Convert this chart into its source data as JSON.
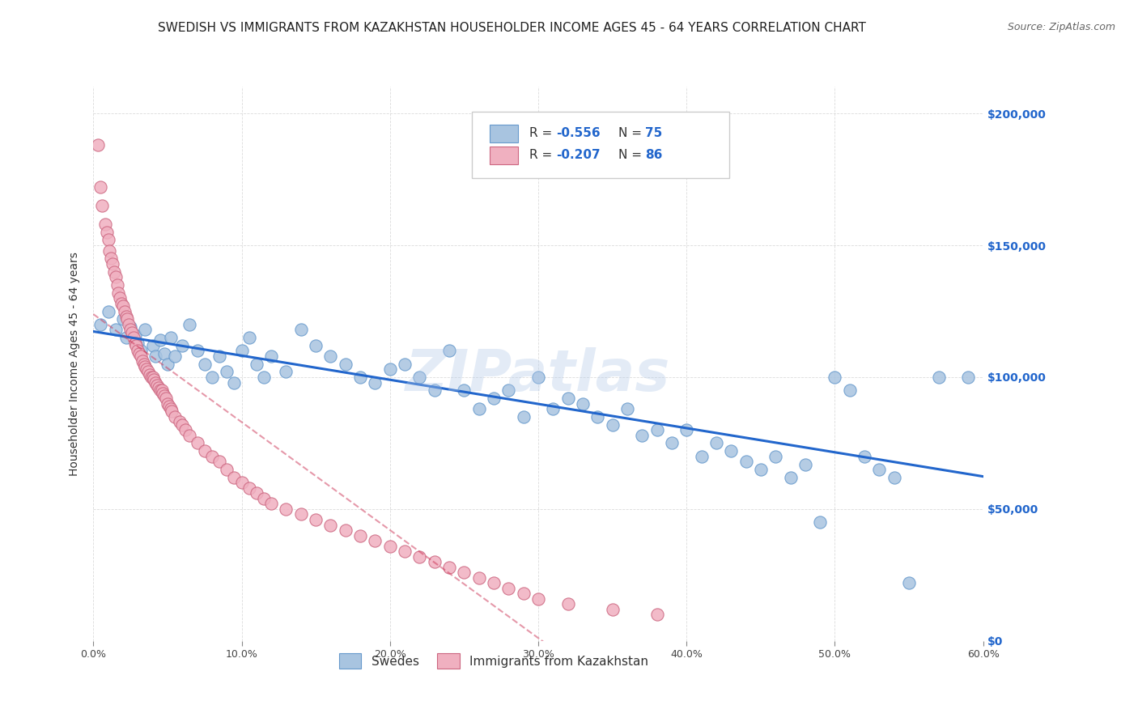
{
  "title": "SWEDISH VS IMMIGRANTS FROM KAZAKHSTAN HOUSEHOLDER INCOME AGES 45 - 64 YEARS CORRELATION CHART",
  "source": "Source: ZipAtlas.com",
  "ylabel": "Householder Income Ages 45 - 64 years",
  "xlabel_ticks": [
    "0.0%",
    "10.0%",
    "20.0%",
    "30.0%",
    "40.0%",
    "50.0%",
    "60.0%"
  ],
  "xlabel_vals": [
    0,
    10,
    20,
    30,
    40,
    50,
    60
  ],
  "ytick_labels": [
    "$0",
    "$50,000",
    "$100,000",
    "$150,000",
    "$200,000"
  ],
  "ytick_vals": [
    0,
    50000,
    100000,
    150000,
    200000
  ],
  "legend1_r": "-0.556",
  "legend1_n": "75",
  "legend2_r": "-0.207",
  "legend2_n": "86",
  "blue_color": "#a8c4e0",
  "blue_edge": "#6699cc",
  "pink_color": "#f0b0c0",
  "pink_edge": "#cc6680",
  "trend_blue": "#2266cc",
  "trend_pink": "#cc3355",
  "blue_scatter_x": [
    0.5,
    1.0,
    1.5,
    2.0,
    2.2,
    2.5,
    2.8,
    3.0,
    3.2,
    3.5,
    4.0,
    4.2,
    4.5,
    4.8,
    5.0,
    5.2,
    5.5,
    6.0,
    6.5,
    7.0,
    7.5,
    8.0,
    8.5,
    9.0,
    9.5,
    10.0,
    10.5,
    11.0,
    11.5,
    12.0,
    13.0,
    14.0,
    15.0,
    16.0,
    17.0,
    18.0,
    19.0,
    20.0,
    21.0,
    22.0,
    23.0,
    24.0,
    25.0,
    26.0,
    27.0,
    28.0,
    29.0,
    30.0,
    31.0,
    32.0,
    33.0,
    34.0,
    35.0,
    36.0,
    37.0,
    38.0,
    39.0,
    40.0,
    41.0,
    42.0,
    43.0,
    44.0,
    45.0,
    46.0,
    47.0,
    48.0,
    49.0,
    50.0,
    51.0,
    52.0,
    53.0,
    54.0,
    55.0,
    57.0,
    59.0
  ],
  "blue_scatter_y": [
    120000,
    125000,
    118000,
    122000,
    115000,
    119000,
    116000,
    113000,
    110000,
    118000,
    112000,
    108000,
    114000,
    109000,
    105000,
    115000,
    108000,
    112000,
    120000,
    110000,
    105000,
    100000,
    108000,
    102000,
    98000,
    110000,
    115000,
    105000,
    100000,
    108000,
    102000,
    118000,
    112000,
    108000,
    105000,
    100000,
    98000,
    103000,
    105000,
    100000,
    95000,
    110000,
    95000,
    88000,
    92000,
    95000,
    85000,
    100000,
    88000,
    92000,
    90000,
    85000,
    82000,
    88000,
    78000,
    80000,
    75000,
    80000,
    70000,
    75000,
    72000,
    68000,
    65000,
    70000,
    62000,
    67000,
    45000,
    100000,
    95000,
    70000,
    65000,
    62000,
    22000,
    100000,
    100000
  ],
  "pink_scatter_x": [
    0.3,
    0.5,
    0.6,
    0.8,
    0.9,
    1.0,
    1.1,
    1.2,
    1.3,
    1.4,
    1.5,
    1.6,
    1.7,
    1.8,
    1.9,
    2.0,
    2.1,
    2.2,
    2.3,
    2.4,
    2.5,
    2.6,
    2.7,
    2.8,
    2.9,
    3.0,
    3.1,
    3.2,
    3.3,
    3.4,
    3.5,
    3.6,
    3.7,
    3.8,
    3.9,
    4.0,
    4.1,
    4.2,
    4.3,
    4.4,
    4.5,
    4.6,
    4.7,
    4.8,
    4.9,
    5.0,
    5.1,
    5.2,
    5.3,
    5.5,
    5.8,
    6.0,
    6.2,
    6.5,
    7.0,
    7.5,
    8.0,
    8.5,
    9.0,
    9.5,
    10.0,
    10.5,
    11.0,
    11.5,
    12.0,
    13.0,
    14.0,
    15.0,
    16.0,
    17.0,
    18.0,
    19.0,
    20.0,
    21.0,
    22.0,
    23.0,
    24.0,
    25.0,
    26.0,
    27.0,
    28.0,
    29.0,
    30.0,
    32.0,
    35.0,
    38.0
  ],
  "pink_scatter_y": [
    188000,
    172000,
    165000,
    158000,
    155000,
    152000,
    148000,
    145000,
    143000,
    140000,
    138000,
    135000,
    132000,
    130000,
    128000,
    127000,
    125000,
    123000,
    122000,
    120000,
    118000,
    117000,
    115000,
    113000,
    112000,
    110000,
    109000,
    108000,
    106000,
    105000,
    104000,
    103000,
    102000,
    101000,
    100000,
    100000,
    99000,
    98000,
    97000,
    96000,
    95000,
    95000,
    94000,
    93000,
    92000,
    90000,
    89000,
    88000,
    87000,
    85000,
    83000,
    82000,
    80000,
    78000,
    75000,
    72000,
    70000,
    68000,
    65000,
    62000,
    60000,
    58000,
    56000,
    54000,
    52000,
    50000,
    48000,
    46000,
    44000,
    42000,
    40000,
    38000,
    36000,
    34000,
    32000,
    30000,
    28000,
    26000,
    24000,
    22000,
    20000,
    18000,
    16000,
    14000,
    12000,
    10000
  ],
  "xlim": [
    0,
    60
  ],
  "ylim": [
    0,
    210000
  ],
  "figsize": [
    14.06,
    8.92
  ],
  "dpi": 100,
  "background": "#ffffff",
  "watermark": "ZIPatlas",
  "title_fontsize": 11,
  "axis_label_fontsize": 10
}
